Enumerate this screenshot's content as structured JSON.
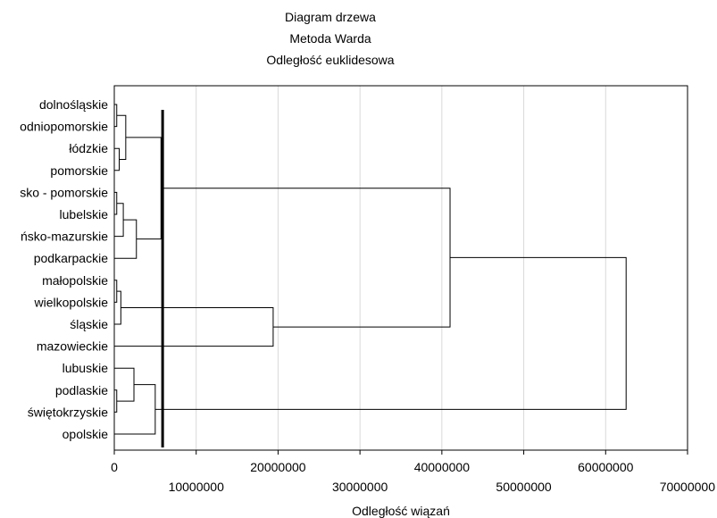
{
  "chart_data": {
    "type": "dendrogram",
    "title_lines": [
      "Diagram drzewa",
      "Metoda Warda",
      "Odległość euklidesowa"
    ],
    "xlabel": "Odległość wiązań",
    "xlim": [
      0,
      70000000
    ],
    "x_ticks_upper": [
      "0",
      "20000000",
      "40000000",
      "60000000"
    ],
    "x_ticks_lower": [
      "10000000",
      "30000000",
      "50000000",
      "70000000"
    ],
    "x_tick_values_upper": [
      0,
      20000000,
      40000000,
      60000000
    ],
    "x_tick_values_lower": [
      10000000,
      30000000,
      50000000,
      70000000
    ],
    "grid": "vertical",
    "leaves": [
      "dolnośląskie",
      "kujawsko-pomorskie (wyświetlane: odniopomorskie)",
      "łódzkie",
      "pomorskie",
      "kujawsko - pomorskie (wyświetlane: sko - pomorskie)",
      "lubelskie",
      "warmińsko-mazurskie (wyświetlane: ińsko-mazurskie)",
      "podkarpackie",
      "małopolskie",
      "wielkopolskie",
      "śląskie",
      "mazowieckie",
      "lubuskie",
      "podlaskie",
      "świętokrzyskie",
      "opolskie"
    ],
    "leaf_labels_visible": [
      "dolnośląskie",
      "odniopomorskie",
      "łódzkie",
      "pomorskie",
      "sko - pomorskie",
      "lubelskie",
      "ńsko-mazurskie",
      "podkarpackie",
      "małopolskie",
      "wielkopolskie",
      "śląskie",
      "mazowieckie",
      "lubuskie",
      "podlaskie",
      "świętokrzyskie",
      "opolskie"
    ],
    "merges": [
      {
        "left": "L0",
        "right": "L1",
        "height": 300000
      },
      {
        "left": "L2",
        "right": "L3",
        "height": 600000
      },
      {
        "left": "M0",
        "right": "M1",
        "height": 1400000
      },
      {
        "left": "L4",
        "right": "L5",
        "height": 300000
      },
      {
        "left": "M3",
        "right": "L6",
        "height": 1100000
      },
      {
        "left": "M4",
        "right": "L7",
        "height": 2700000
      },
      {
        "left": "M2",
        "right": "M5",
        "height": 5700000
      },
      {
        "left": "L8",
        "right": "L9",
        "height": 300000
      },
      {
        "left": "M7",
        "right": "L10",
        "height": 800000
      },
      {
        "left": "M8",
        "right": "L11",
        "height": 19400000
      },
      {
        "left": "M6",
        "right": "M9",
        "height": 41000000
      },
      {
        "left": "L13",
        "right": "L14",
        "height": 300000
      },
      {
        "left": "L12",
        "right": "M11",
        "height": 2400000
      },
      {
        "left": "M12",
        "right": "L15",
        "height": 5000000
      },
      {
        "left": "M10",
        "right": "M13",
        "height": 62500000
      }
    ],
    "cut_line": 5900000
  }
}
